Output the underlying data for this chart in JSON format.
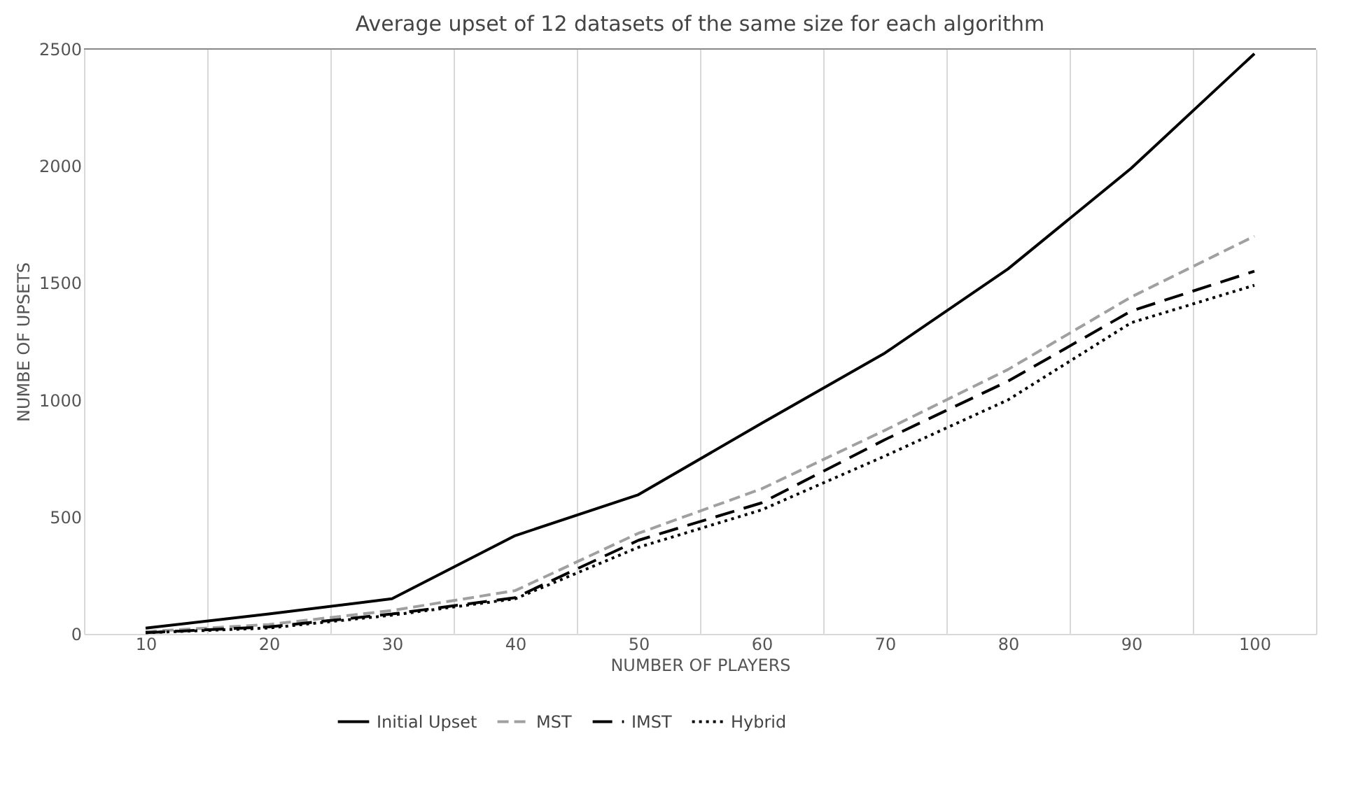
{
  "chart_data": {
    "type": "line",
    "title": "Average upset of 12 datasets of the same size for each algorithm",
    "xlabel": "NUMBER OF PLAYERS",
    "ylabel": "NUMBE OF UPSETS",
    "categories": [
      "10",
      "20",
      "30",
      "40",
      "50",
      "60",
      "70",
      "80",
      "90",
      "100"
    ],
    "series": [
      {
        "name": "Initial Upset",
        "color": "#000000",
        "line_style": "solid",
        "values": [
          25,
          85,
          150,
          420,
          595,
          900,
          1200,
          1560,
          1990,
          2480
        ]
      },
      {
        "name": "MST",
        "color": "#a0a0a0",
        "line_style": "dashed",
        "values": [
          10,
          40,
          100,
          185,
          430,
          620,
          870,
          1130,
          1440,
          1700
        ]
      },
      {
        "name": "IMST",
        "color": "#000000",
        "line_style": "dashed",
        "values": [
          5,
          30,
          85,
          155,
          400,
          560,
          830,
          1080,
          1380,
          1550
        ]
      },
      {
        "name": "Hybrid",
        "color": "#000000",
        "line_style": "dotted",
        "values": [
          5,
          25,
          80,
          150,
          370,
          530,
          760,
          1000,
          1330,
          1490
        ]
      }
    ],
    "ylim": [
      0,
      2500
    ],
    "yticks": [
      0,
      500,
      1000,
      1500,
      2000,
      2500
    ],
    "grid": "x",
    "legend": "bottom",
    "marker": "none"
  }
}
